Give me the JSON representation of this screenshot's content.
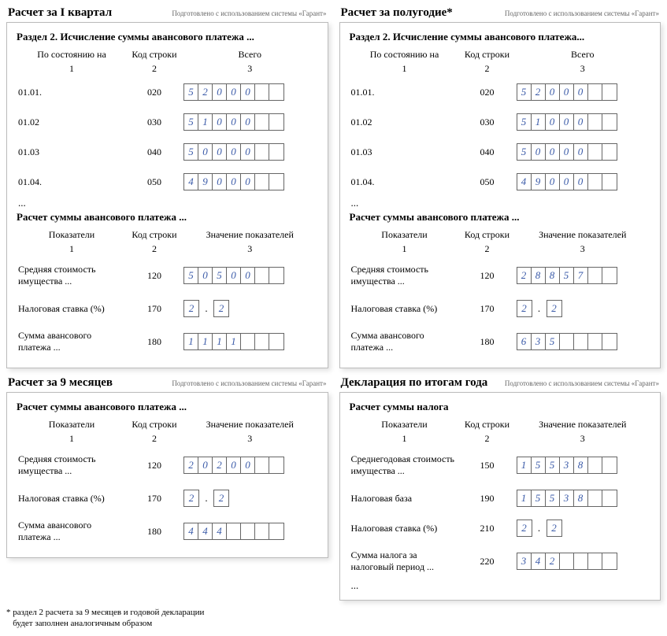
{
  "sysnote": "Подготовлено с использованием системы «Гарант»",
  "footnote": "* раздел 2 расчета за 9 месяцев и годовой декларации\n   будет заполнен аналогичным образом",
  "panels": [
    {
      "title": "Расчет за I квартал",
      "sections": [
        {
          "caption": "Раздел 2. Исчисление суммы авансового платежа ...",
          "headers": [
            "По состоянию на",
            "Код строки",
            "Всего"
          ],
          "nums": [
            "1",
            "2",
            "3"
          ],
          "rows": [
            {
              "label": "01.01.",
              "code": "020",
              "cells": [
                "5",
                "2",
                "0",
                "0",
                "0",
                "",
                ""
              ]
            },
            {
              "label": "01.02",
              "code": "030",
              "cells": [
                "5",
                "1",
                "0",
                "0",
                "0",
                "",
                ""
              ]
            },
            {
              "label": "01.03",
              "code": "040",
              "cells": [
                "5",
                "0",
                "0",
                "0",
                "0",
                "",
                ""
              ]
            },
            {
              "label": "01.04.",
              "code": "050",
              "cells": [
                "4",
                "9",
                "0",
                "0",
                "0",
                "",
                ""
              ]
            }
          ],
          "trailing_ellipsis": "..."
        },
        {
          "caption": "Расчет суммы авансового платежа ...",
          "headers": [
            "Показатели",
            "Код строки",
            "Значение показателей"
          ],
          "nums": [
            "1",
            "2",
            "3"
          ],
          "rows": [
            {
              "label": "Средняя стоимость имущества ...",
              "code": "120",
              "cells": [
                "5",
                "0",
                "5",
                "0",
                "0",
                "",
                ""
              ]
            },
            {
              "label": "Налоговая ставка (%)",
              "code": "170",
              "cells_split": {
                "left": [
                  "2"
                ],
                "right": [
                  "2"
                ]
              }
            },
            {
              "label": "Сумма авансового платежа ...",
              "code": "180",
              "cells": [
                "1",
                "1",
                "1",
                "1",
                "",
                "",
                ""
              ]
            }
          ]
        }
      ]
    },
    {
      "title": "Расчет за полугодие*",
      "sections": [
        {
          "caption": "Раздел 2. Исчисление суммы авансового платежа...",
          "headers": [
            "По состоянию на",
            "Код строки",
            "Всего"
          ],
          "nums": [
            "1",
            "2",
            "3"
          ],
          "rows": [
            {
              "label": "01.01.",
              "code": "020",
              "cells": [
                "5",
                "2",
                "0",
                "0",
                "0",
                "",
                ""
              ]
            },
            {
              "label": "01.02",
              "code": "030",
              "cells": [
                "5",
                "1",
                "0",
                "0",
                "0",
                "",
                ""
              ]
            },
            {
              "label": "01.03",
              "code": "040",
              "cells": [
                "5",
                "0",
                "0",
                "0",
                "0",
                "",
                ""
              ]
            },
            {
              "label": "01.04.",
              "code": "050",
              "cells": [
                "4",
                "9",
                "0",
                "0",
                "0",
                "",
                ""
              ]
            }
          ],
          "trailing_ellipsis": "..."
        },
        {
          "caption": "Расчет суммы авансового платежа ...",
          "headers": [
            "Показатели",
            "Код строки",
            "Значение показателей"
          ],
          "nums": [
            "1",
            "2",
            "3"
          ],
          "rows": [
            {
              "label": "Средняя стоимость имущества ...",
              "code": "120",
              "cells": [
                "2",
                "8",
                "8",
                "5",
                "7",
                "",
                ""
              ]
            },
            {
              "label": "Налоговая ставка (%)",
              "code": "170",
              "cells_split": {
                "left": [
                  "2"
                ],
                "right": [
                  "2"
                ]
              }
            },
            {
              "label": "Сумма авансового платежа ...",
              "code": "180",
              "cells": [
                "6",
                "3",
                "5",
                "",
                "",
                "",
                ""
              ]
            }
          ]
        }
      ]
    },
    {
      "title": "Расчет за 9 месяцев",
      "sections": [
        {
          "caption": "Расчет суммы авансового платежа ...",
          "headers": [
            "Показатели",
            "Код строки",
            "Значение показателей"
          ],
          "nums": [
            "1",
            "2",
            "3"
          ],
          "rows": [
            {
              "label": "Средняя стоимость имущества ...",
              "code": "120",
              "cells": [
                "2",
                "0",
                "2",
                "0",
                "0",
                "",
                ""
              ]
            },
            {
              "label": "Налоговая ставка (%)",
              "code": "170",
              "cells_split": {
                "left": [
                  "2"
                ],
                "right": [
                  "2"
                ]
              }
            },
            {
              "label": "Сумма авансового платежа ...",
              "code": "180",
              "cells": [
                "4",
                "4",
                "4",
                "",
                "",
                "",
                ""
              ]
            }
          ]
        }
      ]
    },
    {
      "title": "Декларация по итогам года",
      "sections": [
        {
          "caption": "Расчет суммы налога",
          "headers": [
            "Показатели",
            "Код строки",
            "Значение показателей"
          ],
          "nums": [
            "1",
            "2",
            "3"
          ],
          "rows": [
            {
              "label": "Среднегодовая стоимость имущества ...",
              "code": "150",
              "cells": [
                "1",
                "5",
                "5",
                "3",
                "8",
                "",
                ""
              ]
            },
            {
              "label": "Налоговая база",
              "code": "190",
              "cells": [
                "1",
                "5",
                "5",
                "3",
                "8",
                "",
                ""
              ]
            },
            {
              "label": "Налоговая ставка (%)",
              "code": "210",
              "cells_split": {
                "left": [
                  "2"
                ],
                "right": [
                  "2"
                ]
              }
            },
            {
              "label": "Сумма налога за налоговый период ...",
              "code": "220",
              "cells": [
                "3",
                "4",
                "2",
                "",
                "",
                "",
                ""
              ]
            }
          ],
          "trailing_ellipsis": "..."
        }
      ]
    }
  ]
}
